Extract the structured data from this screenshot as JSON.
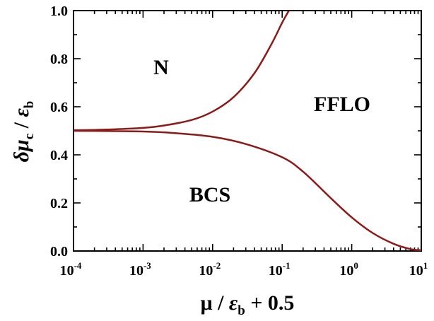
{
  "chart_data": {
    "type": "line",
    "x_scale": "log",
    "xlim": [
      0.0001,
      10
    ],
    "ylim": [
      0.0,
      1.0
    ],
    "xlabel": {
      "main": "μ / ",
      "eps": "ε",
      "sub": "b",
      "tail": " + 0.5"
    },
    "ylabel": {
      "delta": "δμ",
      "sub_c": "c",
      "slash": " / ",
      "eps": "ε",
      "sub_b": "b"
    },
    "x_ticks": [
      {
        "base": "10",
        "exp": "-4",
        "value": 0.0001
      },
      {
        "base": "10",
        "exp": "-3",
        "value": 0.001
      },
      {
        "base": "10",
        "exp": "-2",
        "value": 0.01
      },
      {
        "base": "10",
        "exp": "-1",
        "value": 0.1
      },
      {
        "base": "10",
        "exp": "0",
        "value": 1
      },
      {
        "base": "10",
        "exp": "1",
        "value": 10
      }
    ],
    "y_ticks": [
      "0.0",
      "0.2",
      "0.4",
      "0.6",
      "0.8",
      "1.0"
    ],
    "region_labels": {
      "n": "N",
      "fflo": "FFLO",
      "bcs": "BCS"
    },
    "curve_color": "#8b1a1a",
    "series": [
      {
        "points": [
          [
            0.0001,
            0.502
          ],
          [
            0.0003,
            0.505
          ],
          [
            0.001,
            0.512
          ],
          [
            0.002,
            0.522
          ],
          [
            0.005,
            0.545
          ],
          [
            0.01,
            0.58
          ],
          [
            0.02,
            0.64
          ],
          [
            0.04,
            0.74
          ],
          [
            0.07,
            0.86
          ],
          [
            0.1,
            0.95
          ],
          [
            0.125,
            1.0
          ]
        ]
      },
      {
        "points": [
          [
            0.0001,
            0.5
          ],
          [
            0.001,
            0.497
          ],
          [
            0.003,
            0.49
          ],
          [
            0.01,
            0.475
          ],
          [
            0.03,
            0.445
          ],
          [
            0.1,
            0.39
          ],
          [
            0.2,
            0.33
          ],
          [
            0.5,
            0.22
          ],
          [
            1.0,
            0.14
          ],
          [
            2.0,
            0.075
          ],
          [
            4.0,
            0.03
          ],
          [
            7.0,
            0.008
          ],
          [
            10.0,
            0.003
          ]
        ]
      }
    ]
  }
}
